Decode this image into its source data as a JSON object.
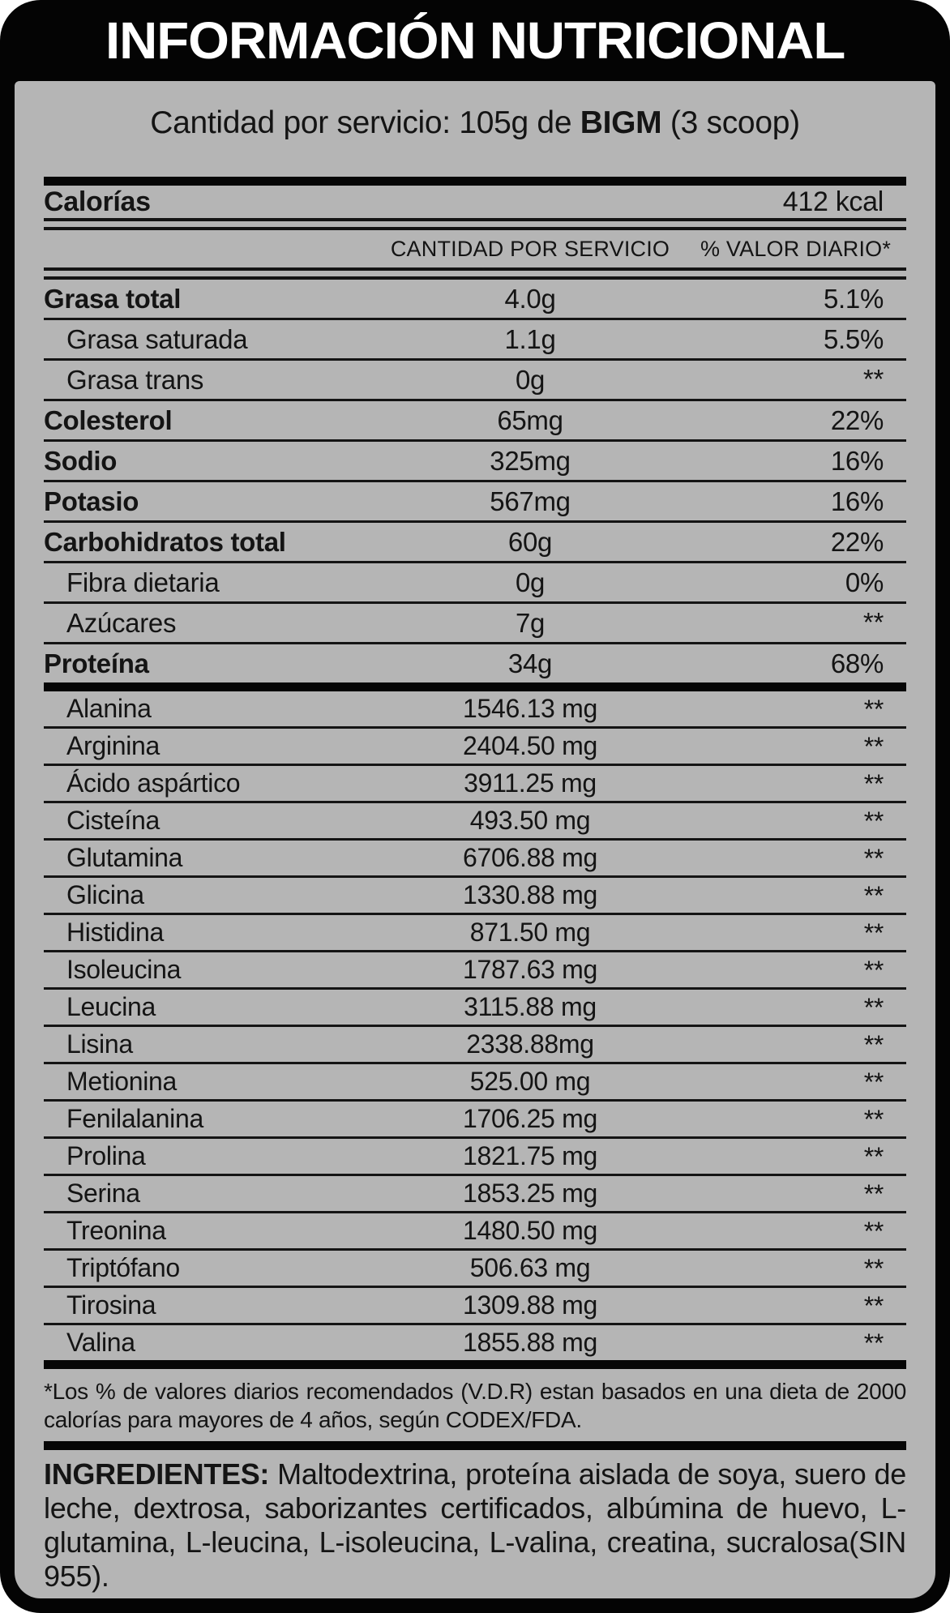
{
  "title": "INFORMACIÓN NUTRICIONAL",
  "serving": {
    "prefix": "Cantidad por servicio: 105g de ",
    "brand": "BIGM",
    "suffix": " (3 scoop)"
  },
  "calories": {
    "label": "Calorías",
    "value": "412 kcal"
  },
  "columns": {
    "amount": "CANTIDAD POR SERVICIO",
    "dv": "% VALOR DIARIO*"
  },
  "nutrients": [
    {
      "label": "Grasa total",
      "amount": "4.0g",
      "dv": "5.1%",
      "bold": true,
      "indent": false
    },
    {
      "label": "Grasa saturada",
      "amount": "1.1g",
      "dv": "5.5%",
      "bold": false,
      "indent": true
    },
    {
      "label": "Grasa trans",
      "amount": "0g",
      "dv": "**",
      "bold": false,
      "indent": true
    },
    {
      "label": "Colesterol",
      "amount": "65mg",
      "dv": "22%",
      "bold": true,
      "indent": false
    },
    {
      "label": "Sodio",
      "amount": "325mg",
      "dv": "16%",
      "bold": true,
      "indent": false
    },
    {
      "label": "Potasio",
      "amount": "567mg",
      "dv": "16%",
      "bold": true,
      "indent": false
    },
    {
      "label": "Carbohidratos total",
      "amount": "60g",
      "dv": "22%",
      "bold": true,
      "indent": false
    },
    {
      "label": "Fibra dietaria",
      "amount": "0g",
      "dv": "0%",
      "bold": false,
      "indent": true
    },
    {
      "label": "Azúcares",
      "amount": "7g",
      "dv": "**",
      "bold": false,
      "indent": true
    },
    {
      "label": "Proteína",
      "amount": "34g",
      "dv": "68%",
      "bold": true,
      "indent": false
    }
  ],
  "amino_acids": [
    {
      "label": "Alanina",
      "amount": "1546.13 mg",
      "dv": "**"
    },
    {
      "label": "Arginina",
      "amount": "2404.50 mg",
      "dv": "**"
    },
    {
      "label": "Ácido aspártico",
      "amount": "3911.25 mg",
      "dv": "**"
    },
    {
      "label": "Cisteína",
      "amount": "493.50 mg",
      "dv": "**"
    },
    {
      "label": "Glutamina",
      "amount": "6706.88 mg",
      "dv": "**"
    },
    {
      "label": "Glicina",
      "amount": "1330.88 mg",
      "dv": "**"
    },
    {
      "label": "Histidina",
      "amount": "871.50 mg",
      "dv": "**"
    },
    {
      "label": "Isoleucina",
      "amount": "1787.63 mg",
      "dv": "**"
    },
    {
      "label": "Leucina",
      "amount": "3115.88 mg",
      "dv": "**"
    },
    {
      "label": "Lisina",
      "amount": "2338.88mg",
      "dv": "**"
    },
    {
      "label": "Metionina",
      "amount": "525.00 mg",
      "dv": "**"
    },
    {
      "label": "Fenilalanina",
      "amount": "1706.25 mg",
      "dv": "**"
    },
    {
      "label": "Prolina",
      "amount": "1821.75 mg",
      "dv": "**"
    },
    {
      "label": "Serina",
      "amount": "1853.25 mg",
      "dv": "**"
    },
    {
      "label": "Treonina",
      "amount": "1480.50 mg",
      "dv": "**"
    },
    {
      "label": "Triptófano",
      "amount": "506.63 mg",
      "dv": "**"
    },
    {
      "label": "Tirosina",
      "amount": "1309.88 mg",
      "dv": "**"
    },
    {
      "label": "Valina",
      "amount": "1855.88 mg",
      "dv": "**"
    }
  ],
  "footnote": "*Los % de valores diarios recomendados (V.D.R) estan basados en una dieta de 2000 calorías para mayores de 4 años, según CODEX/FDA.",
  "ingredients": {
    "label": "INGREDIENTES:",
    "text": " Maltodextrina, proteína aislada de soya, suero de leche, dextrosa, saborizantes certificados, albúmina de huevo, L-glutamina, L-leucina, L-isoleucina, L-valina, creatina, sucralosa(SIN 955)."
  },
  "colors": {
    "background": "#b5b5b5",
    "band": "#040404",
    "ink": "#141414"
  }
}
